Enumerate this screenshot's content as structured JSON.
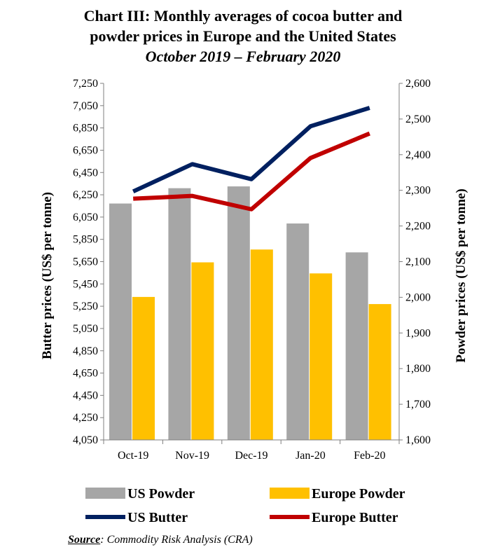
{
  "chart_data": {
    "type": "bar",
    "title": "Chart III: Monthly averages of cocoa butter and powder prices in Europe and the United States",
    "title_line1": "Chart III: Monthly averages of cocoa butter and",
    "title_line2": "powder prices in Europe and the United States",
    "subtitle": "October 2019 – February 2020",
    "categories": [
      "Oct-19",
      "Nov-19",
      "Dec-19",
      "Jan-20",
      "Feb-20"
    ],
    "ylabel_left": "Butter prices (US$ per tonne)",
    "ylabel_right": "Powder prices (US$ per tonne)",
    "ylim_left": [
      4050,
      7250
    ],
    "ylim_right": [
      1600,
      2600
    ],
    "yticks_left": [
      "4,050",
      "4,250",
      "4,450",
      "4,650",
      "4,850",
      "5,050",
      "5,250",
      "5,450",
      "5,650",
      "5,850",
      "6,050",
      "6,250",
      "6,450",
      "6,650",
      "6,850",
      "7,050",
      "7,250"
    ],
    "yticks_right": [
      "1,600",
      "1,700",
      "1,800",
      "1,900",
      "2,000",
      "2,100",
      "2,200",
      "2,300",
      "2,400",
      "2,500",
      "2,600"
    ],
    "grid": false,
    "legend_position": "bottom",
    "series": [
      {
        "name": "US Powder",
        "type": "bar",
        "axis": "right",
        "color": "#A6A6A6",
        "values": [
          2263,
          2306,
          2311,
          2207,
          2126
        ]
      },
      {
        "name": "Europe Powder",
        "type": "bar",
        "axis": "right",
        "color": "#FFC000",
        "values": [
          2001,
          2098,
          2134,
          2067,
          1981
        ]
      },
      {
        "name": "US Butter",
        "type": "line",
        "axis": "left",
        "color": "#002060",
        "values": [
          6280,
          6525,
          6390,
          6865,
          7030
        ]
      },
      {
        "name": "Europe Butter",
        "type": "line",
        "axis": "left",
        "color": "#C00000",
        "values": [
          6215,
          6240,
          6120,
          6580,
          6800
        ]
      }
    ]
  },
  "source": {
    "label": "Source",
    "text": ": Commodity Risk Analysis (CRA)"
  }
}
